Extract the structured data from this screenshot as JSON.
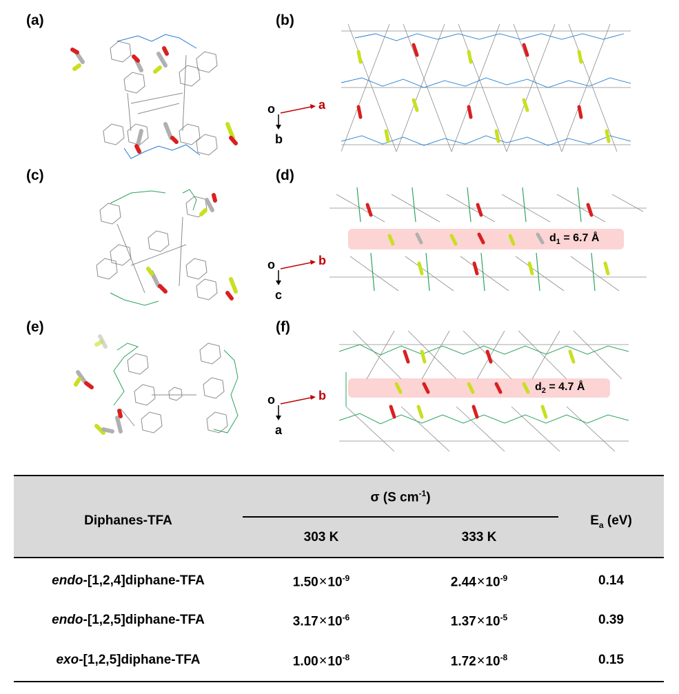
{
  "panels": {
    "a": {
      "label": "(a)"
    },
    "b": {
      "label": "(b)",
      "axis_origin": "o",
      "axis_x": "a",
      "axis_y": "b"
    },
    "c": {
      "label": "(c)"
    },
    "d": {
      "label": "(d)",
      "axis_origin": "o",
      "axis_x": "b",
      "axis_y": "c",
      "distance_symbol": "d",
      "distance_sub": "1",
      "distance_value": " = 6.7 Å"
    },
    "e": {
      "label": "(e)"
    },
    "f": {
      "label": "(f)",
      "axis_origin": "o",
      "axis_x": "b",
      "axis_y": "a",
      "distance_symbol": "d",
      "distance_sub": "2",
      "distance_value": " = 4.7 Å"
    }
  },
  "colors": {
    "linker_blue": "#1f7ad2",
    "linker_green": "#2aa35a",
    "frame_gray": "#8a8a8a",
    "oxygen_red": "#d92020",
    "fluorine_yellow": "#c8e020",
    "carbon_gray": "#b0b0b0",
    "axis_red": "#c00000",
    "band_pink": "#f8a0a0"
  },
  "table": {
    "col_compound": "Diphanes-TFA",
    "col_sigma": "σ (S cm",
    "col_sigma_sup": "-1",
    "col_sigma_close": ")",
    "col_303": "303 K",
    "col_333": "333 K",
    "col_ea_main": "E",
    "col_ea_sub": "a",
    "col_ea_unit": " (eV)",
    "times_sign": "×",
    "rows": [
      {
        "prefix": "endo",
        "rest": "-[1,2,4]diphane-TFA",
        "s303_mant": "1.50",
        "s303_exp": "-9",
        "s333_mant": "2.44",
        "s333_exp": "-9",
        "ea": "0.14"
      },
      {
        "prefix": "endo",
        "rest": "-[1,2,5]diphane-TFA",
        "s303_mant": "3.17",
        "s303_exp": "-6",
        "s333_mant": "1.37",
        "s333_exp": "-5",
        "ea": "0.39"
      },
      {
        "prefix": "exo",
        "rest": "-[1,2,5]diphane-TFA",
        "s303_mant": "1.00",
        "s303_exp": "-8",
        "s333_mant": "1.72",
        "s333_exp": "-8",
        "ea": "0.15"
      }
    ],
    "ten": "10"
  }
}
